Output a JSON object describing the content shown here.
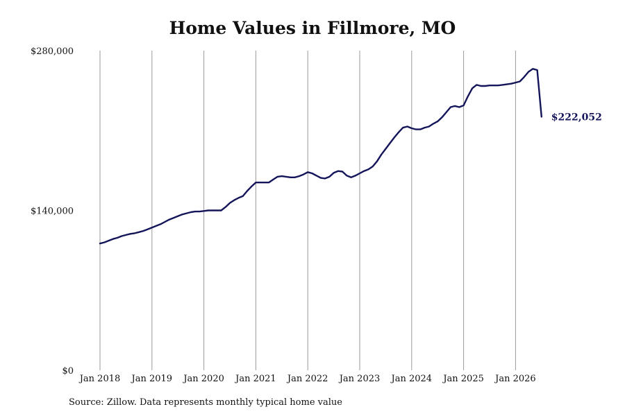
{
  "chart_data": {
    "type": "line",
    "title": "Home Values in Fillmore, MO",
    "xlabel": "",
    "ylabel": "",
    "ylim": [
      0,
      280000
    ],
    "y_ticks": [
      "$0",
      "$140,000",
      "$280,000"
    ],
    "y_tick_values": [
      0,
      140000,
      280000
    ],
    "x_tick_labels": [
      "Jan 2018",
      "Jan 2019",
      "Jan 2020",
      "Jan 2021",
      "Jan 2022",
      "Jan 2023",
      "Jan 2024",
      "Jan 2025",
      "Jan 2026"
    ],
    "x_tick_dates": [
      "2018-01",
      "2019-01",
      "2020-01",
      "2021-01",
      "2022-01",
      "2023-01",
      "2024-01",
      "2025-01",
      "2026-01"
    ],
    "xlim": [
      "2018-01",
      "2026-07"
    ],
    "grid": "vertical lines at x ticks",
    "line_color": "#14145a",
    "grid_color": "#9a9a9a",
    "end_label": "$222,052",
    "series": [
      {
        "x": [
          "2018-01",
          "2018-02",
          "2018-03",
          "2018-04",
          "2018-05",
          "2018-06",
          "2018-07",
          "2018-08",
          "2018-09",
          "2018-10",
          "2018-11",
          "2018-12",
          "2019-01",
          "2019-02",
          "2019-03",
          "2019-04",
          "2019-05",
          "2019-06",
          "2019-07",
          "2019-08",
          "2019-09",
          "2019-10",
          "2019-11",
          "2019-12",
          "2020-01",
          "2020-02",
          "2020-03",
          "2020-04",
          "2020-05",
          "2020-06",
          "2020-07",
          "2020-08",
          "2020-09",
          "2020-10",
          "2020-11",
          "2020-12",
          "2021-01",
          "2021-02",
          "2021-03",
          "2021-04",
          "2021-05",
          "2021-06",
          "2021-07",
          "2021-08",
          "2021-09",
          "2021-10",
          "2021-11",
          "2021-12",
          "2022-01",
          "2022-02",
          "2022-03",
          "2022-04",
          "2022-05",
          "2022-06",
          "2022-07",
          "2022-08",
          "2022-09",
          "2022-10",
          "2022-11",
          "2022-12",
          "2023-01",
          "2023-02",
          "2023-03",
          "2023-04",
          "2023-05",
          "2023-06",
          "2023-07",
          "2023-08",
          "2023-09",
          "2023-10",
          "2023-11",
          "2023-12",
          "2024-01",
          "2024-02",
          "2024-03",
          "2024-04",
          "2024-05",
          "2024-06",
          "2024-07",
          "2024-08",
          "2024-09",
          "2024-10",
          "2024-11",
          "2024-12",
          "2025-01",
          "2025-02",
          "2025-03",
          "2025-04",
          "2025-05",
          "2025-06",
          "2025-07",
          "2025-08",
          "2025-09",
          "2025-10",
          "2025-11",
          "2025-12",
          "2026-01",
          "2026-02",
          "2026-03",
          "2026-04",
          "2026-05",
          "2026-06",
          "2026-07"
        ],
        "values": [
          111000,
          112000,
          113500,
          115000,
          116000,
          117500,
          118500,
          119500,
          120000,
          121000,
          122000,
          123500,
          125000,
          126500,
          128000,
          130000,
          132000,
          133500,
          135000,
          136500,
          137500,
          138500,
          139000,
          139000,
          139500,
          140000,
          140000,
          140000,
          140000,
          143000,
          146500,
          149000,
          151000,
          152500,
          157000,
          161000,
          164500,
          164500,
          164500,
          164500,
          167000,
          169500,
          170000,
          169500,
          169000,
          169000,
          170000,
          171500,
          173500,
          172500,
          170500,
          168500,
          168000,
          169500,
          173000,
          174500,
          174000,
          170500,
          169000,
          170500,
          172500,
          174500,
          176000,
          178500,
          183000,
          189000,
          194000,
          199000,
          204000,
          208500,
          212500,
          213500,
          212000,
          211000,
          211000,
          212500,
          213500,
          216000,
          218000,
          221500,
          226000,
          230500,
          231500,
          230500,
          232000,
          240000,
          247000,
          250000,
          249000,
          249000,
          249500,
          249500,
          249500,
          250000,
          250500,
          251000,
          252000,
          253000,
          257000,
          261500,
          264000,
          263000,
          222052
        ]
      }
    ]
  },
  "source": "Source: Zillow. Data represents monthly typical home value"
}
